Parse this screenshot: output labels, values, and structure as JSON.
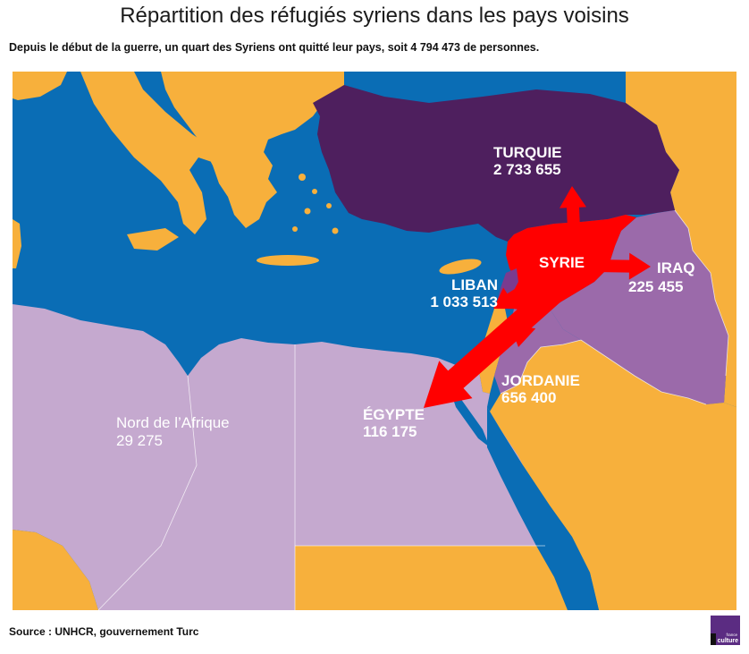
{
  "title": "Répartition des réfugiés syriens dans les pays voisins",
  "subtitle": "Depuis le début de la guerre, un quart des Syriens ont quitté leur pays, soit 4 794 473 de personnes.",
  "source": "Source : UNHCR, gouvernement Turc",
  "logo": {
    "line1": "france",
    "line2": "culture"
  },
  "colors": {
    "sea": "#0a6db5",
    "land": "#f7b03c",
    "turkey": "#4e1f5e",
    "syria": "#ff0000",
    "iraq_jordan": "#9b6aaa",
    "lebanon": "#7a3b8f",
    "egypt_north_africa": "#c5a9cf",
    "logo": "#5b2c82"
  },
  "map": {
    "origin": "SYRIE",
    "destinations": [
      {
        "name": "TURQUIE",
        "refugees": "2 733 655"
      },
      {
        "name": "LIBAN",
        "refugees": "1 033 513"
      },
      {
        "name": "JORDANIE",
        "refugees": "656 400"
      },
      {
        "name": "IRAQ",
        "refugees": "225 455"
      },
      {
        "name": "ÉGYPTE",
        "refugees": "116 175"
      },
      {
        "name": "Nord de l’Afrique",
        "refugees": "29 275"
      }
    ]
  }
}
